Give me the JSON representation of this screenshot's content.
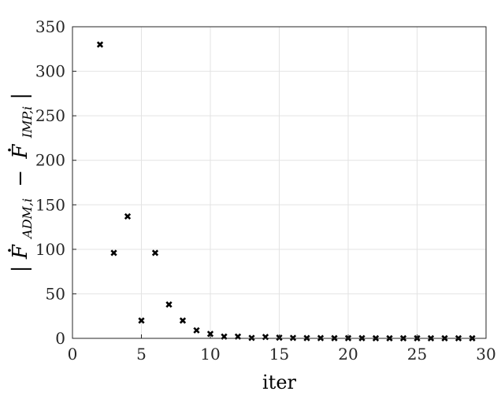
{
  "chart_data": {
    "type": "scatter",
    "title": "",
    "xlabel": "iter",
    "ylabel": {
      "prefix": "|",
      "term1": "F",
      "sub1": "ADM,i",
      "minus": "−",
      "term2": "F",
      "sub2": "IMP,i",
      "suffix": "|"
    },
    "xlim": [
      0,
      30
    ],
    "ylim": [
      0,
      350
    ],
    "xticks": [
      "0",
      "5",
      "10",
      "15",
      "20",
      "25",
      "30"
    ],
    "yticks": [
      "0",
      "50",
      "100",
      "150",
      "200",
      "250",
      "300",
      "350"
    ],
    "grid": true,
    "marker": "x",
    "series": [
      {
        "x": [
          2,
          3,
          4,
          5,
          6,
          7,
          8,
          9,
          10,
          11,
          12,
          13,
          14,
          15,
          16,
          17,
          18,
          19,
          20,
          21,
          22,
          23,
          24,
          25,
          26,
          27,
          28,
          29
        ],
        "y": [
          330,
          96,
          137,
          20,
          96,
          38,
          20,
          9,
          5,
          2,
          2,
          0.5,
          1.5,
          0.8,
          0.5,
          0.3,
          0.3,
          0.2,
          0.2,
          0.2,
          0.1,
          0.1,
          0.1,
          0.1,
          0.1,
          0.1,
          0.1,
          0.1
        ]
      }
    ],
    "colors": {
      "marker": "#000000",
      "grid": "#e3e3e3",
      "axis": "#262626"
    }
  }
}
